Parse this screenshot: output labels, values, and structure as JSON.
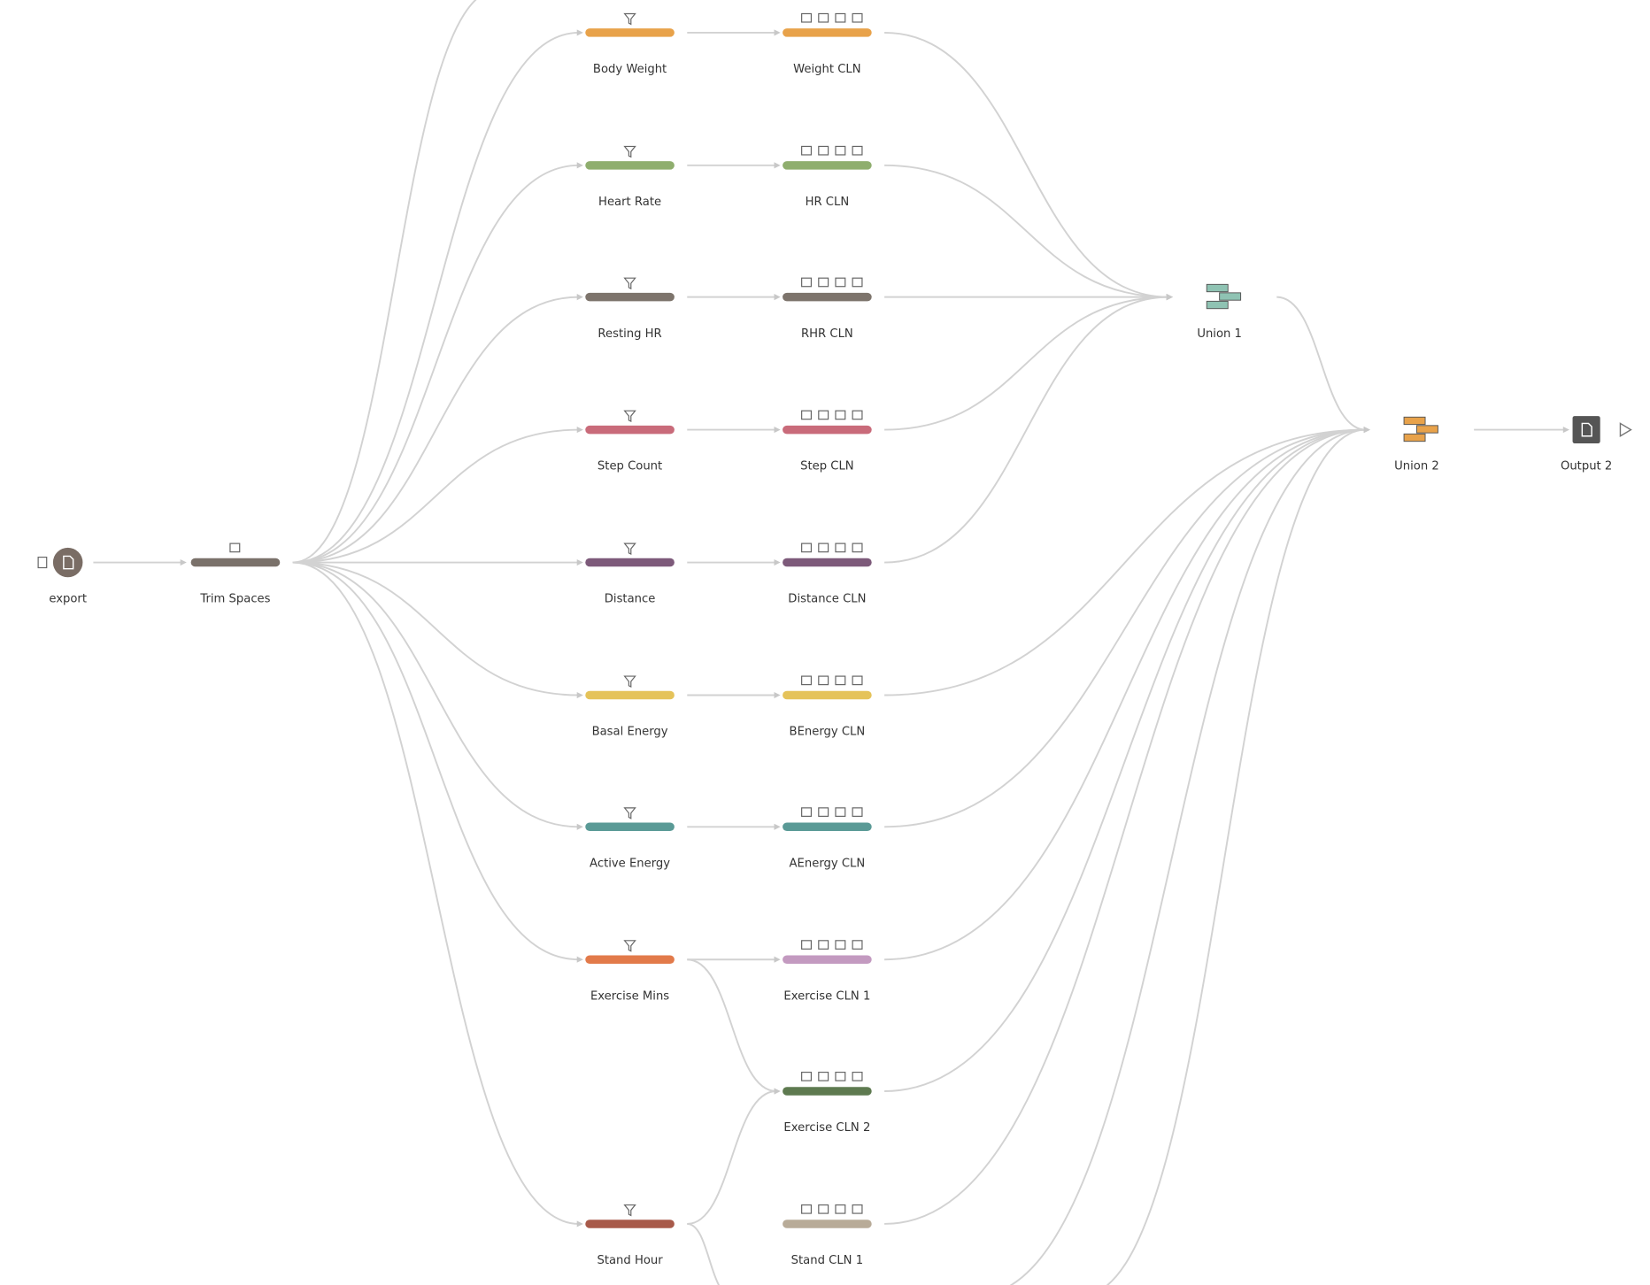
{
  "nodes": [
    {
      "label": "export"
    },
    {
      "label": "Trim Spaces"
    },
    {
      "label": "Body Weight"
    },
    {
      "label": "Heart Rate"
    },
    {
      "label": "Resting HR"
    },
    {
      "label": "Step Count"
    },
    {
      "label": "Distance"
    },
    {
      "label": "Basal Energy"
    },
    {
      "label": "Active Energy"
    },
    {
      "label": "Exercise Mins"
    },
    {
      "label": "Stand Hour"
    },
    {
      "label": "Weight CLN"
    },
    {
      "label": "HR CLN"
    },
    {
      "label": "RHR CLN"
    },
    {
      "label": "Step CLN"
    },
    {
      "label": "Distance CLN"
    },
    {
      "label": "BEnergy CLN"
    },
    {
      "label": "AEnergy CLN"
    },
    {
      "label": "Exercise CLN 1"
    },
    {
      "label": "Exercise CLN 2"
    },
    {
      "label": "Stand CLN 1"
    },
    {
      "label": "Union 1"
    },
    {
      "label": "Union 2"
    },
    {
      "label": "Output 2"
    }
  ]
}
